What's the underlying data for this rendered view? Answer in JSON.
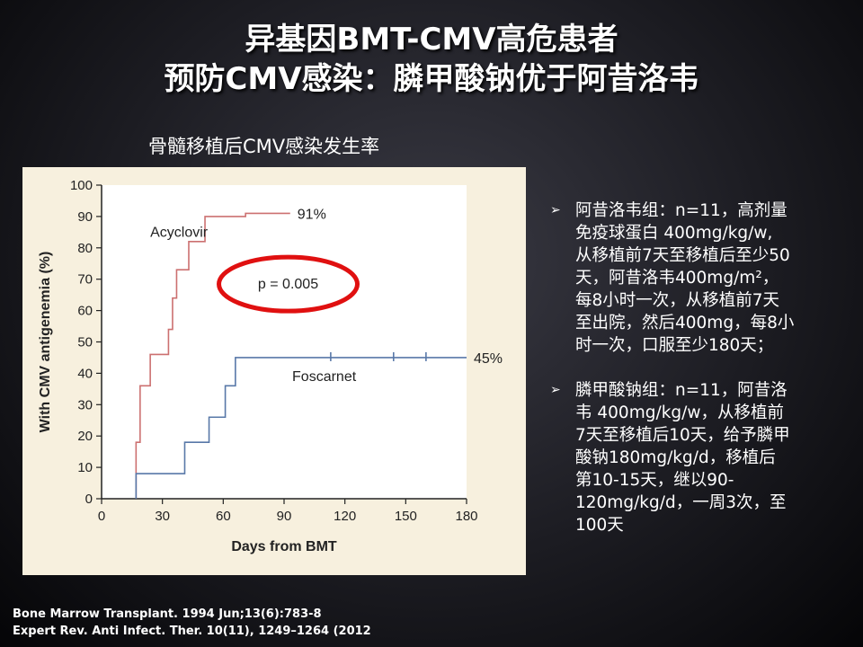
{
  "title_line1": "异基因BMT-CMV高危患者",
  "title_line2": "预防CMV感染：膦甲酸钠优于阿昔洛韦",
  "chart_caption": "骨髓移植后CMV感染发生率",
  "chart_data": {
    "type": "line",
    "xlabel": "Days from BMT",
    "ylabel": "With CMV antigenemia (%)",
    "xlim": [
      0,
      180
    ],
    "ylim": [
      0,
      100
    ],
    "xticks": [
      0,
      30,
      60,
      90,
      120,
      150,
      180
    ],
    "yticks": [
      0,
      10,
      20,
      30,
      40,
      50,
      60,
      70,
      80,
      90,
      100
    ],
    "series": [
      {
        "name": "Acyclovir",
        "color": "#cc7070",
        "end_label": "91%",
        "step_x": [
          17,
          17,
          19,
          19,
          24,
          24,
          33,
          33,
          35,
          35,
          37,
          37,
          43,
          43,
          51,
          51,
          71,
          71,
          93
        ],
        "step_y": [
          0,
          18,
          18,
          36,
          36,
          46,
          46,
          54,
          54,
          64,
          64,
          73,
          73,
          82,
          82,
          90,
          90,
          91,
          91
        ]
      },
      {
        "name": "Foscarnet",
        "color": "#5878a8",
        "end_label": "45%",
        "step_x": [
          17,
          17,
          41,
          41,
          53,
          53,
          61,
          61,
          66,
          66,
          180
        ],
        "step_y": [
          0,
          8,
          8,
          18,
          18,
          26,
          26,
          36,
          36,
          45,
          45
        ],
        "censor_ticks": [
          113,
          144,
          160
        ]
      }
    ],
    "annotation": "p = 0.005"
  },
  "bullets": [
    {
      "lines": [
        "阿昔洛韦组：n=11，高剂量",
        "免疫球蛋白 400mg/kg/w,",
        "从移植前7天至移植后至少50",
        "天，阿昔洛韦400mg/m²，",
        "每8小时一次，从移植前7天",
        "至出院，然后400mg，每8小",
        "时一次，口服至少180天；"
      ]
    },
    {
      "lines": [
        "膦甲酸钠组：n=11，阿昔洛",
        "韦 400mg/kg/w，从移植前",
        "7天至移植后10天，给予膦甲",
        "酸钠180mg/kg/d，移植后",
        "第10-15天，继以90-",
        "120mg/kg/d，一周3次，至",
        "100天"
      ]
    }
  ],
  "references": [
    "Bone Marrow Transplant. 1994 Jun;13(6):783-8",
    "Expert Rev. Anti Infect. Ther. 10(11), 1249–1264 (2012"
  ]
}
